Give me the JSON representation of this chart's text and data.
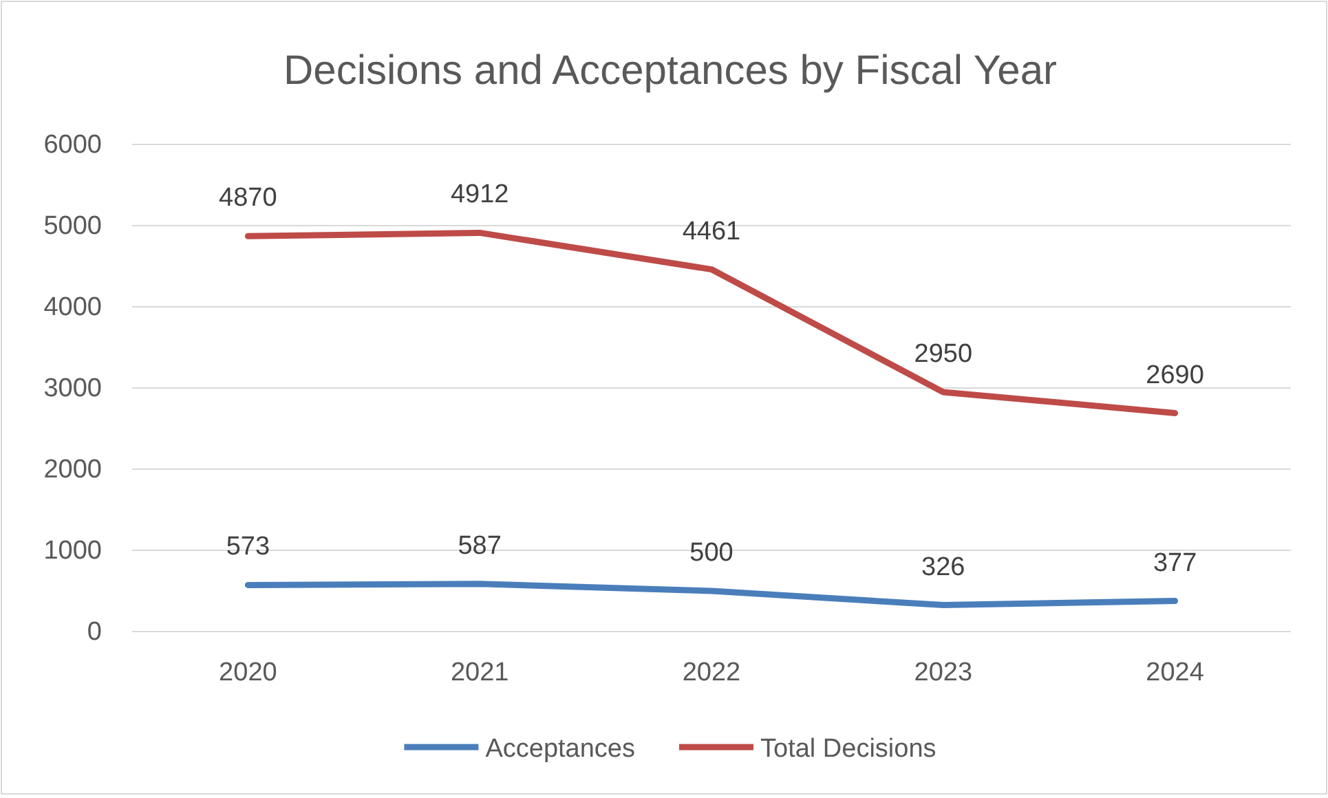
{
  "chart_data": {
    "type": "line",
    "title": "Decisions and Acceptances by Fiscal Year",
    "categories": [
      "2020",
      "2021",
      "2022",
      "2023",
      "2024"
    ],
    "series": [
      {
        "name": "Acceptances",
        "color": "#4a7ebb",
        "values": [
          573,
          587,
          500,
          326,
          377
        ]
      },
      {
        "name": "Total Decisions",
        "color": "#be4b48",
        "values": [
          4870,
          4912,
          4461,
          2950,
          2690
        ]
      }
    ],
    "ylim": [
      0,
      6000
    ],
    "yticks": [
      0,
      1000,
      2000,
      3000,
      4000,
      5000,
      6000
    ],
    "grid": "y",
    "legend": "bottom",
    "data_labels": true,
    "marker": "none",
    "line_style": "solid"
  }
}
